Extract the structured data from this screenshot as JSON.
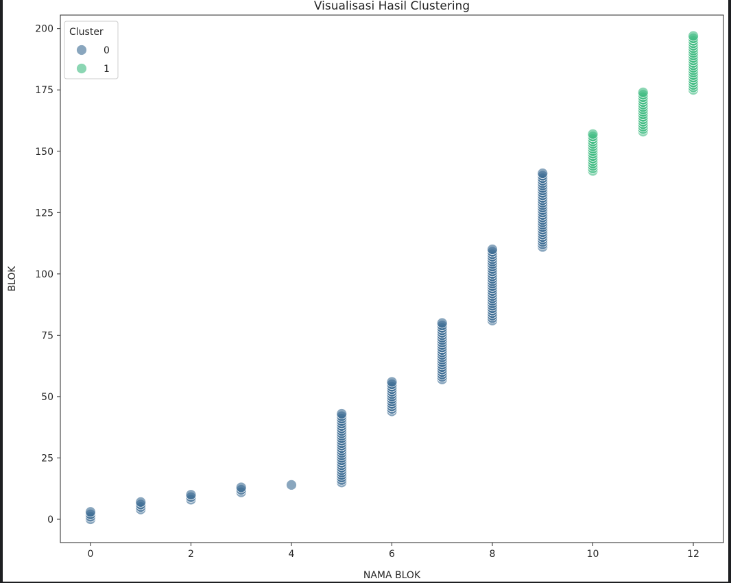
{
  "chart_data": {
    "type": "scatter",
    "title": "Visualisasi Hasil Clustering",
    "xlabel": "NAMA BLOK",
    "ylabel": "BLOK",
    "xlim": [
      -0.6,
      12.6
    ],
    "ylim": [
      -9.5,
      205.5
    ],
    "xticks": [
      0,
      2,
      4,
      6,
      8,
      10,
      12
    ],
    "yticks": [
      0,
      25,
      50,
      75,
      100,
      125,
      150,
      175,
      200
    ],
    "grid": false,
    "legend": {
      "title": "Cluster",
      "placement": "top-left",
      "entries": [
        {
          "label": "0",
          "color": "#3b6a92"
        },
        {
          "label": "1",
          "color": "#3dbb80"
        }
      ]
    },
    "series": [
      {
        "cluster": "0",
        "color": "#3b6a92",
        "groups": [
          {
            "x": 0,
            "y_min": 0,
            "y_max": 3
          },
          {
            "x": 1,
            "y_min": 4,
            "y_max": 7
          },
          {
            "x": 2,
            "y_min": 8,
            "y_max": 10
          },
          {
            "x": 3,
            "y_min": 11,
            "y_max": 13
          },
          {
            "x": 4,
            "y_min": 14,
            "y_max": 14
          },
          {
            "x": 5,
            "y_min": 15,
            "y_max": 43
          },
          {
            "x": 6,
            "y_min": 44,
            "y_max": 56
          },
          {
            "x": 7,
            "y_min": 57,
            "y_max": 80
          },
          {
            "x": 8,
            "y_min": 81,
            "y_max": 110
          },
          {
            "x": 9,
            "y_min": 111,
            "y_max": 141
          }
        ]
      },
      {
        "cluster": "1",
        "color": "#3dbb80",
        "groups": [
          {
            "x": 10,
            "y_min": 142,
            "y_max": 157
          },
          {
            "x": 11,
            "y_min": 158,
            "y_max": 174
          },
          {
            "x": 12,
            "y_min": 175,
            "y_max": 197
          }
        ]
      }
    ]
  }
}
